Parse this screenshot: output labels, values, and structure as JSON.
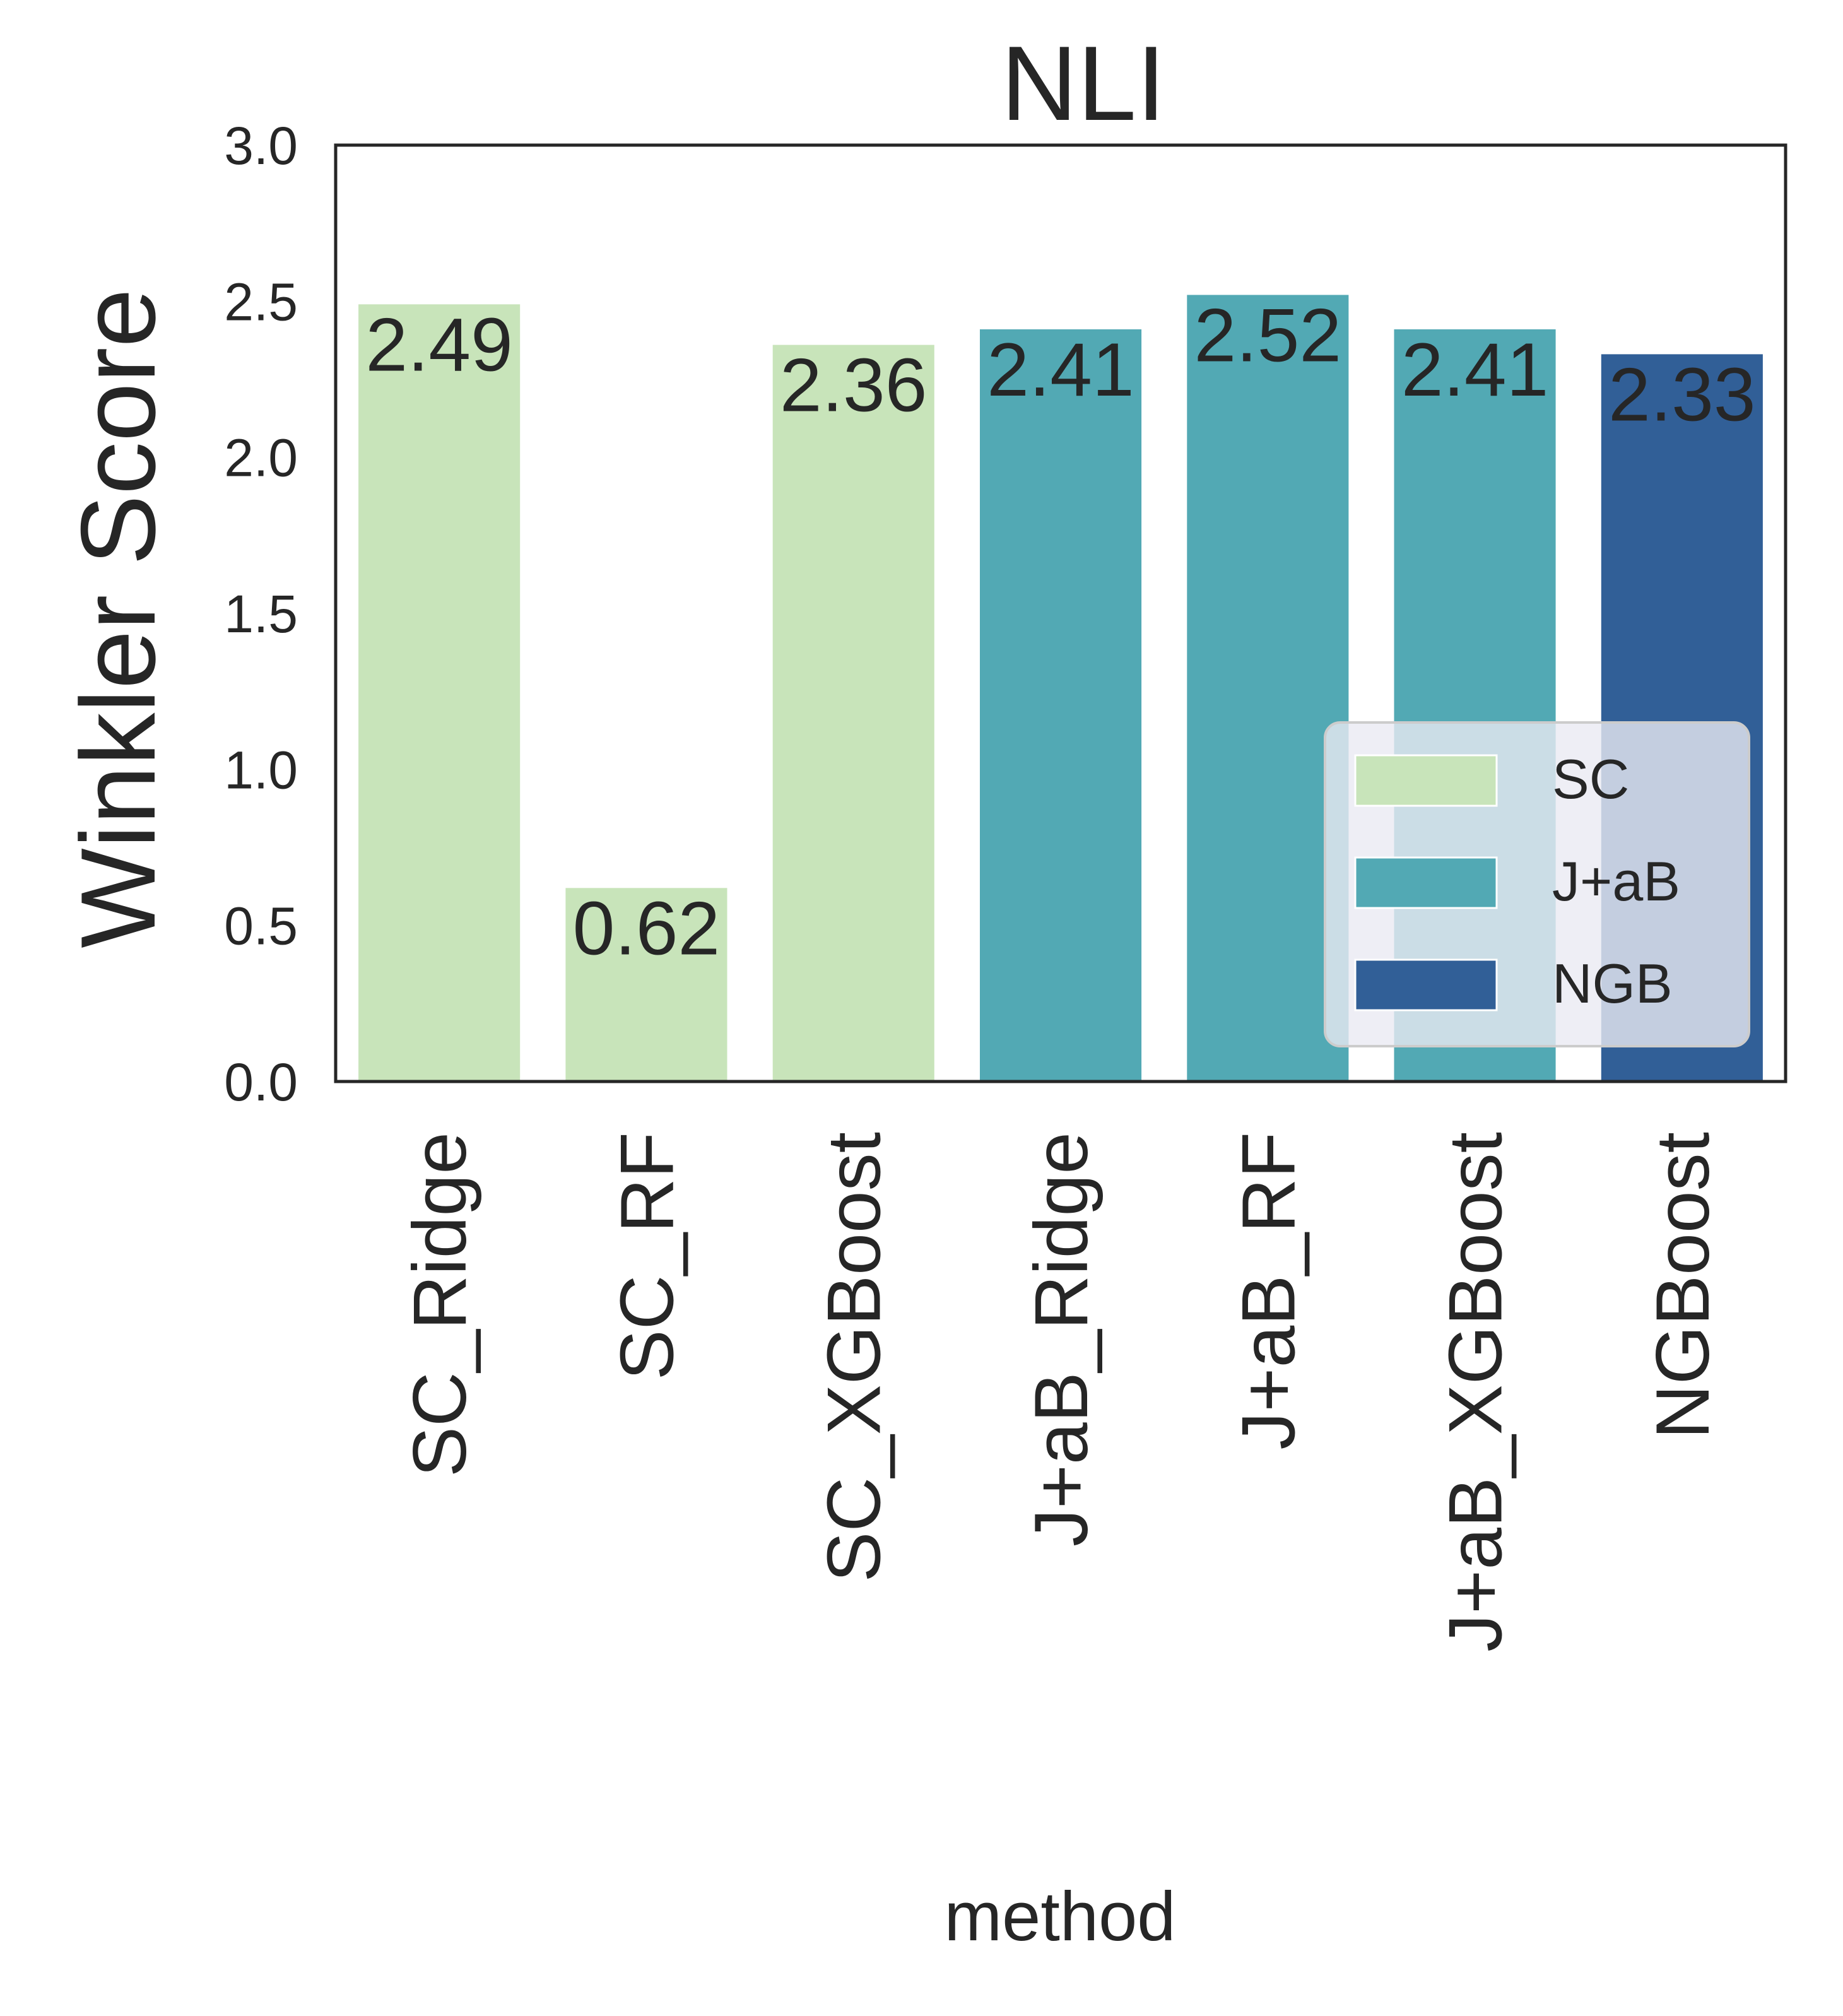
{
  "chart_data": {
    "type": "bar",
    "title": "NLI",
    "xlabel": "method",
    "ylabel": "Winkler Score",
    "ylim": [
      0,
      3.0
    ],
    "yticks": [
      "0.0",
      "0.5",
      "1.0",
      "1.5",
      "2.0",
      "2.5",
      "3.0"
    ],
    "categories": [
      "SC_Ridge",
      "SC_RF",
      "SC_XGBoost",
      "J+aB_Ridge",
      "J+aB_RF",
      "J+aB_XGBoost",
      "NGBoost"
    ],
    "values": [
      2.49,
      0.62,
      2.36,
      2.41,
      2.52,
      2.41,
      2.33
    ],
    "value_labels": [
      "2.49",
      "0.62",
      "2.36",
      "2.41",
      "2.52",
      "2.41",
      "2.33"
    ],
    "groups": [
      "SC",
      "SC",
      "SC",
      "J+aB",
      "J+aB",
      "J+aB",
      "NGB"
    ],
    "legend": {
      "position": "lower-right",
      "entries": [
        {
          "label": "SC",
          "color": "#c8e4ba"
        },
        {
          "label": "J+aB",
          "color": "#52a9b4"
        },
        {
          "label": "NGB",
          "color": "#315f97"
        }
      ]
    },
    "grid": false
  }
}
